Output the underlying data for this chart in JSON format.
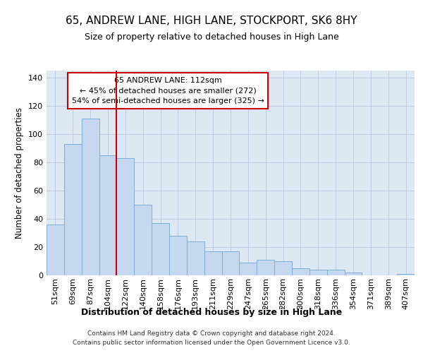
{
  "title": "65, ANDREW LANE, HIGH LANE, STOCKPORT, SK6 8HY",
  "subtitle": "Size of property relative to detached houses in High Lane",
  "xlabel": "Distribution of detached houses by size in High Lane",
  "ylabel": "Number of detached properties",
  "categories": [
    "51sqm",
    "69sqm",
    "87sqm",
    "104sqm",
    "122sqm",
    "140sqm",
    "158sqm",
    "176sqm",
    "193sqm",
    "211sqm",
    "229sqm",
    "247sqm",
    "265sqm",
    "282sqm",
    "300sqm",
    "318sqm",
    "336sqm",
    "354sqm",
    "371sqm",
    "389sqm",
    "407sqm"
  ],
  "values": [
    36,
    93,
    111,
    85,
    83,
    50,
    37,
    28,
    24,
    17,
    17,
    9,
    11,
    10,
    5,
    4,
    4,
    2,
    0,
    0,
    1
  ],
  "bar_color": "#c5d8f0",
  "bar_edge_color": "#7bafd4",
  "vline_x": 3.5,
  "vline_color": "#cc0000",
  "annotation_title": "65 ANDREW LANE: 112sqm",
  "annotation_line1": "← 45% of detached houses are smaller (272)",
  "annotation_line2": "54% of semi-detached houses are larger (325) →",
  "annotation_box_color": "#ffffff",
  "annotation_box_edge": "#cc0000",
  "ylim": [
    0,
    145
  ],
  "yticks": [
    0,
    20,
    40,
    60,
    80,
    100,
    120,
    140
  ],
  "background_color": "#dde8f5",
  "grid_color": "#b8c8e0",
  "title_fontsize": 11,
  "subtitle_fontsize": 9,
  "footer_line1": "Contains HM Land Registry data © Crown copyright and database right 2024.",
  "footer_line2": "Contains public sector information licensed under the Open Government Licence v3.0."
}
